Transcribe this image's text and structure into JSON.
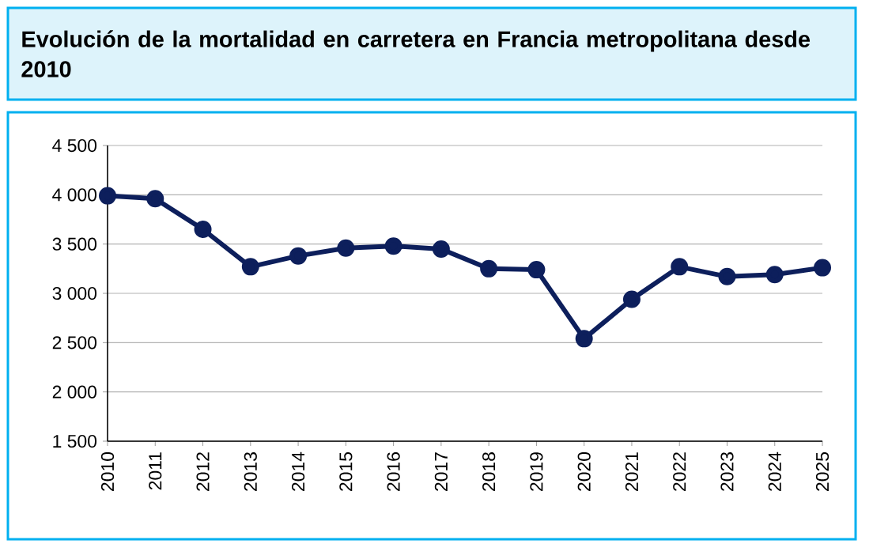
{
  "chart_data": {
    "type": "line",
    "title": "Evolución de la mortalidad en carretera en Francia metropolitana desde 2010",
    "categories": [
      "2010",
      "2011",
      "2012",
      "2013",
      "2014",
      "2015",
      "2016",
      "2017",
      "2018",
      "2019",
      "2020",
      "2021",
      "2022",
      "2023",
      "2024",
      "2025"
    ],
    "series": [
      {
        "color": "#0d1f5c",
        "values": [
          3990,
          3960,
          3650,
          3270,
          3380,
          3460,
          3480,
          3450,
          3250,
          3240,
          2540,
          2940,
          3270,
          3170,
          3190,
          3260
        ]
      }
    ],
    "ylim": [
      1500,
      4500
    ],
    "yticks": [
      {
        "value": 1500,
        "label": "1 500"
      },
      {
        "value": 2000,
        "label": "2 000"
      },
      {
        "value": 2500,
        "label": "2 500"
      },
      {
        "value": 3000,
        "label": "3 000"
      },
      {
        "value": 3500,
        "label": "3 500"
      },
      {
        "value": 4000,
        "label": "4 000"
      },
      {
        "value": 4500,
        "label": "4 500"
      }
    ],
    "grid": "y",
    "marker": "circle"
  }
}
